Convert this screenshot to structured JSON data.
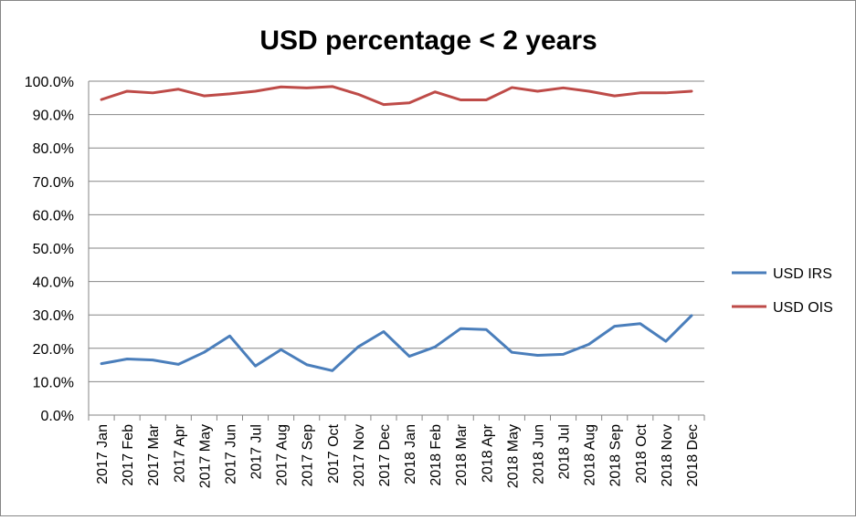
{
  "chart_data": {
    "type": "line",
    "title": "USD percentage < 2 years",
    "xlabel": "",
    "ylabel": "",
    "categories": [
      "2017 Jan",
      "2017 Feb",
      "2017 Mar",
      "2017 Apr",
      "2017 May",
      "2017 Jun",
      "2017 Jul",
      "2017 Aug",
      "2017 Sep",
      "2017 Oct",
      "2017 Nov",
      "2017 Dec",
      "2018 Jan",
      "2018 Feb",
      "2018 Mar",
      "2018 Apr",
      "2018 May",
      "2018 Jun",
      "2018 Jul",
      "2018 Aug",
      "2018 Sep",
      "2018 Oct",
      "2018 Nov",
      "2018 Dec"
    ],
    "series": [
      {
        "name": "USD IRS",
        "color": "#4A7EBB",
        "values": [
          15.4,
          16.8,
          16.5,
          15.2,
          18.8,
          23.7,
          14.7,
          19.6,
          15.1,
          13.3,
          20.4,
          25.0,
          17.6,
          20.4,
          25.9,
          25.6,
          18.8,
          17.9,
          18.2,
          21.2,
          26.6,
          27.4,
          22.1,
          29.8
        ]
      },
      {
        "name": "USD OIS",
        "color": "#BE4B48",
        "values": [
          94.5,
          97.0,
          96.5,
          97.6,
          95.6,
          96.2,
          97.0,
          98.3,
          98.0,
          98.4,
          96.1,
          93.0,
          93.5,
          96.8,
          94.4,
          94.4,
          98.1,
          97.0,
          98.0,
          97.0,
          95.6,
          96.5,
          96.5,
          97.0
        ]
      }
    ],
    "yticks": [
      "0.0%",
      "10.0%",
      "20.0%",
      "30.0%",
      "40.0%",
      "50.0%",
      "60.0%",
      "70.0%",
      "80.0%",
      "90.0%",
      "100.0%"
    ],
    "ylim": [
      0,
      100
    ],
    "grid": true,
    "legend_position": "right"
  }
}
